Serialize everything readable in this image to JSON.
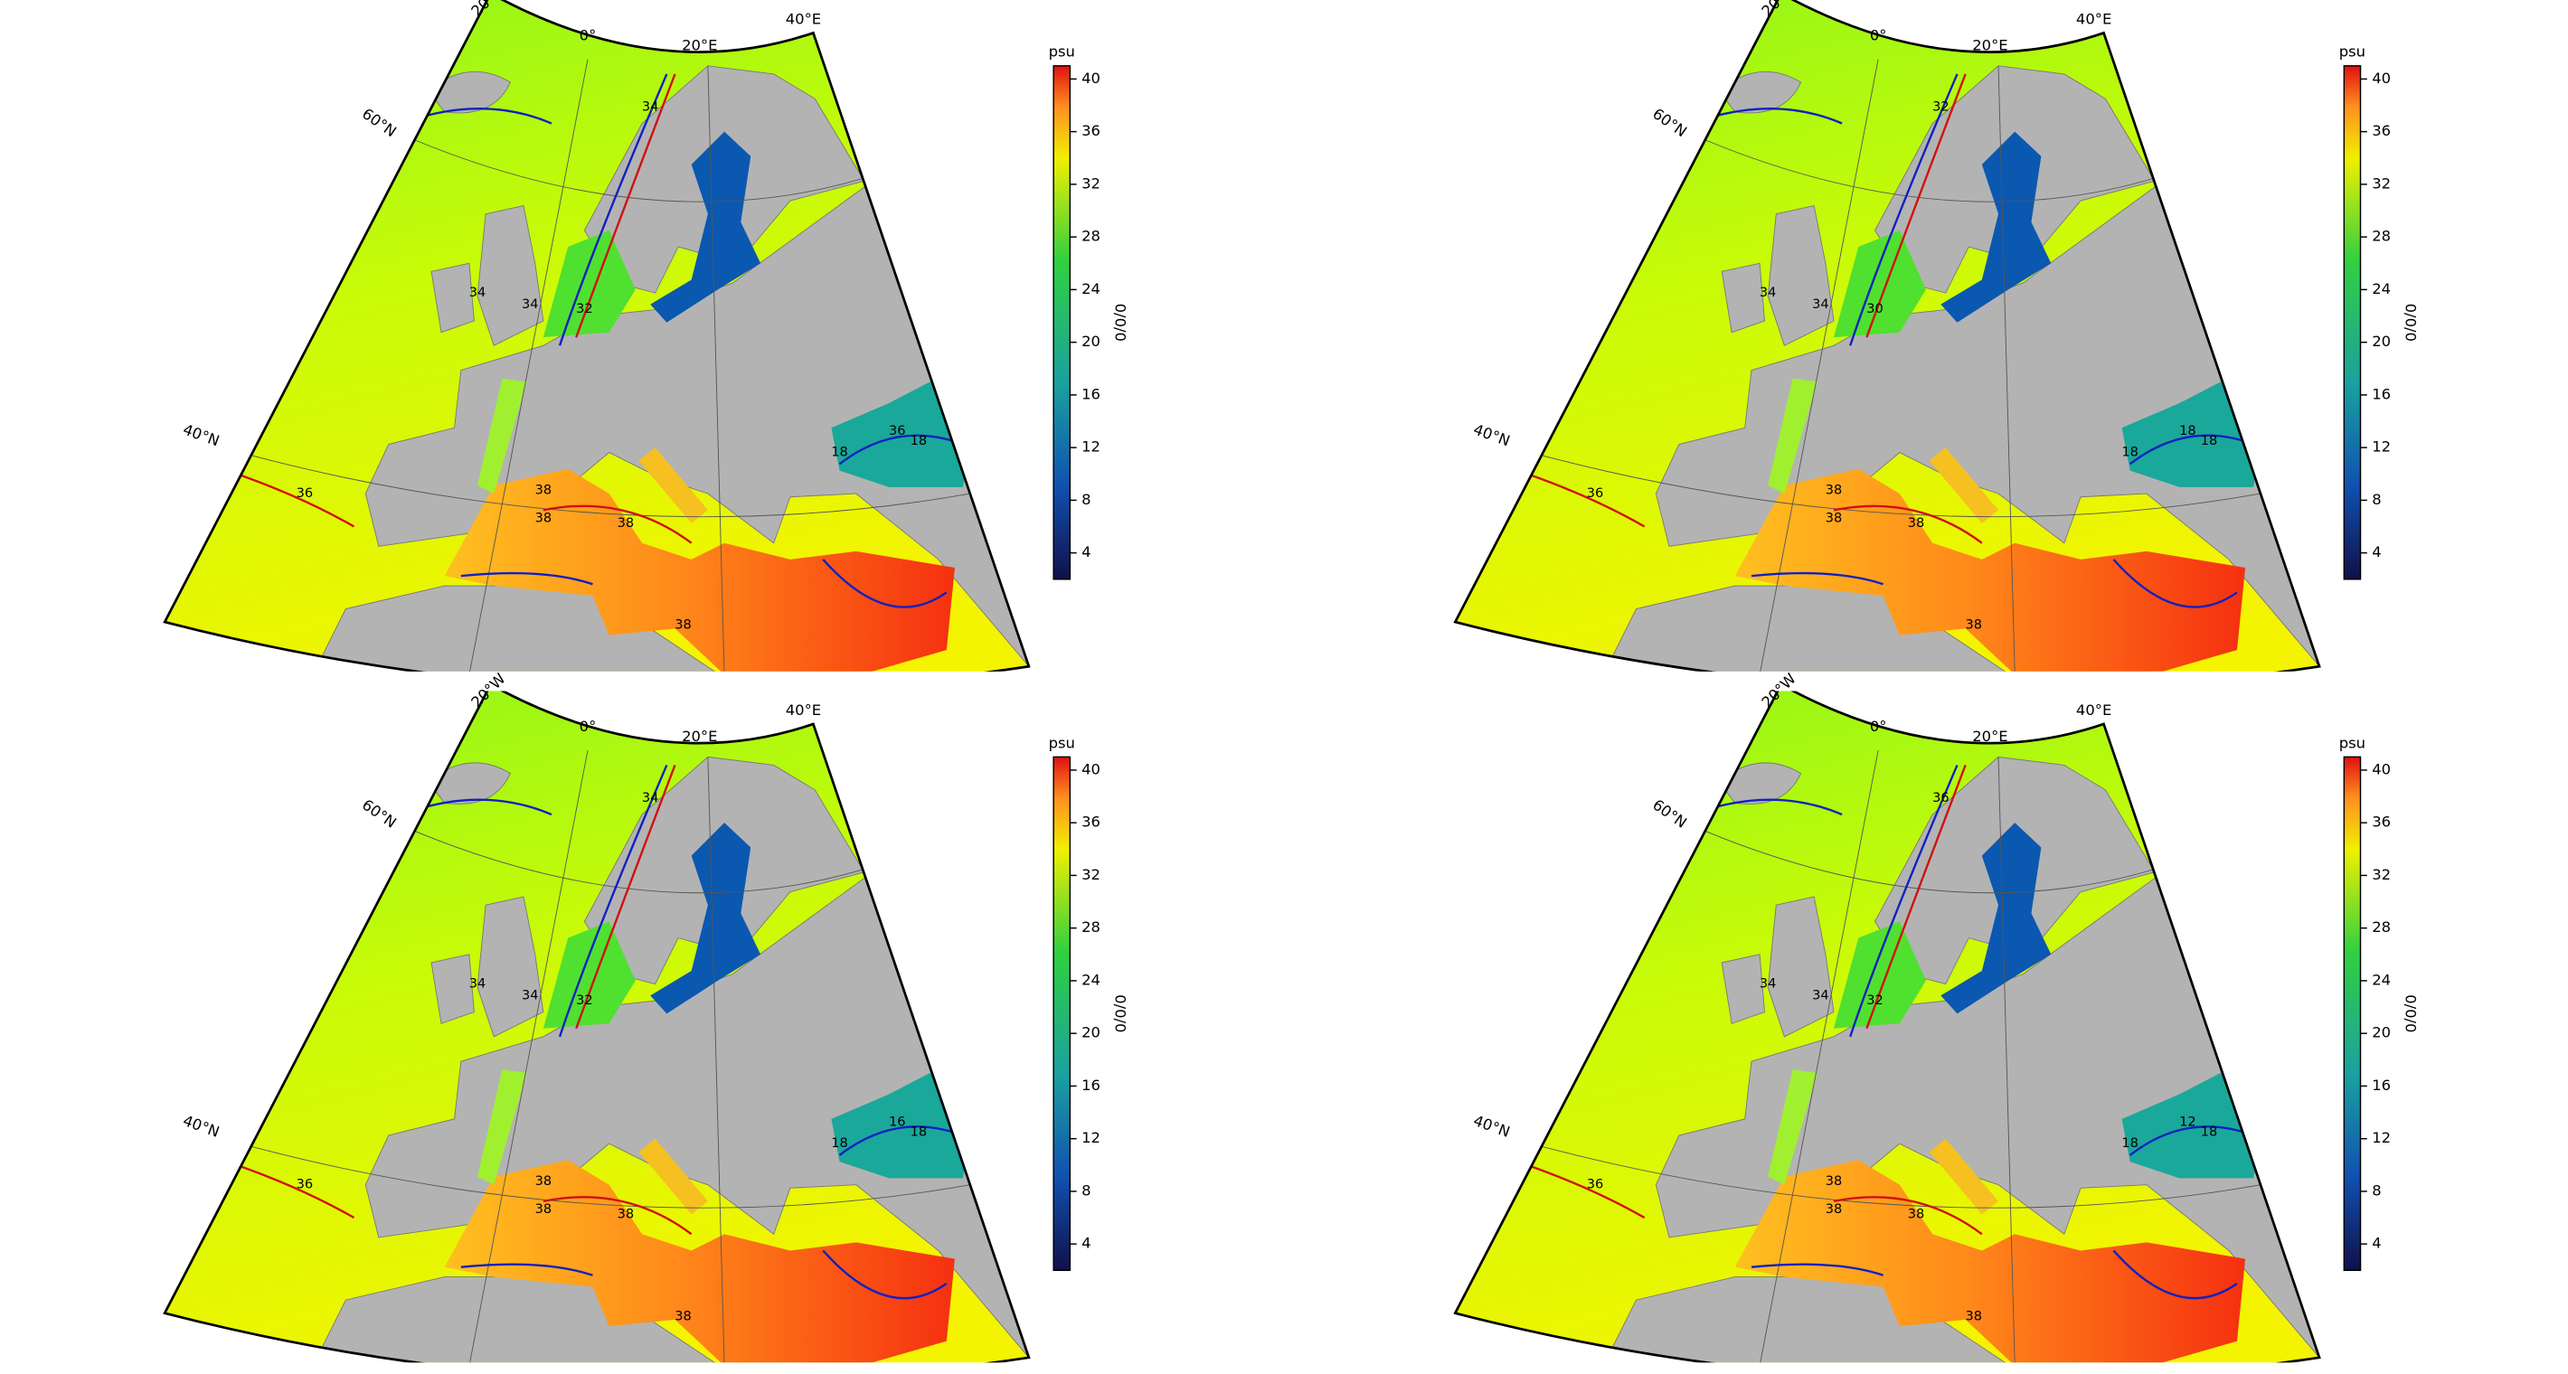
{
  "graticule_labels": [
    "20°W",
    "0°",
    "20°E",
    "40°E",
    "60°N",
    "40°N"
  ],
  "colorbar": {
    "unit": "psu",
    "depth": "0/0/0",
    "lim": [
      2,
      41
    ],
    "ticks": [
      4,
      8,
      12,
      16,
      20,
      24,
      28,
      32,
      36,
      40
    ]
  },
  "panels": [
    {
      "contour_labels": [
        "36",
        "38",
        "38",
        "38",
        "38",
        "18",
        "18",
        "34",
        "34",
        "34",
        "32",
        "36"
      ]
    },
    {
      "contour_labels": [
        "36",
        "38",
        "38",
        "38",
        "38",
        "18",
        "18",
        "34",
        "34",
        "32",
        "30",
        "18"
      ]
    },
    {
      "contour_labels": [
        "36",
        "38",
        "38",
        "38",
        "38",
        "18",
        "18",
        "34",
        "34",
        "34",
        "32",
        "16"
      ]
    },
    {
      "contour_labels": [
        "36",
        "38",
        "38",
        "38",
        "38",
        "18",
        "18",
        "34",
        "34",
        "36",
        "32",
        "12"
      ]
    }
  ]
}
